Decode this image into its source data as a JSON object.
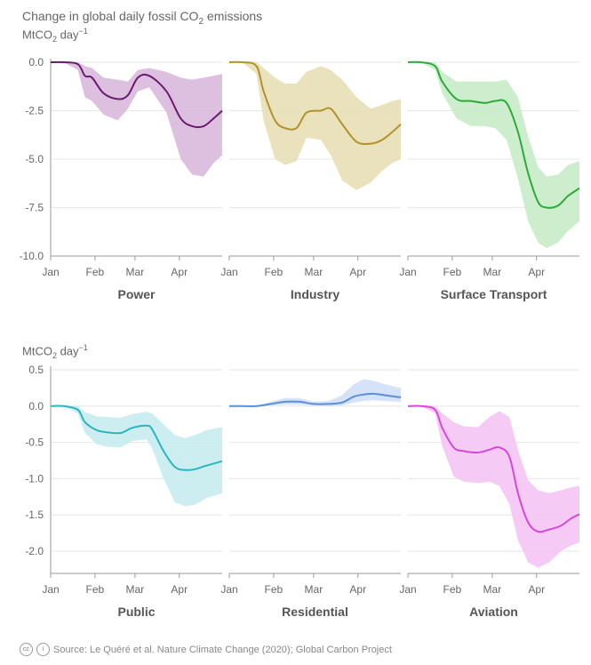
{
  "header": {
    "title_pre": "Change in global daily fossil CO",
    "title_sub": "2",
    "title_post": " emissions"
  },
  "unit": {
    "pre": "MtCO",
    "sub": "2",
    "mid": " day",
    "sup": "−1"
  },
  "source": "Source: Le Quéré et al. Nature Climate Change (2020); Global Carbon Project",
  "cc_icon": "creative-commons-icon",
  "cc_label": "cc",
  "by_icon": "attribution-icon",
  "by_label": "i",
  "chart_data": [
    {
      "type": "area",
      "y_ticks": [
        "0.0",
        "-2.5",
        "-5.0",
        "-7.5",
        "-10.0"
      ],
      "ylim": [
        -10,
        0
      ],
      "x_ticks": [
        "Jan",
        "Feb",
        "Mar",
        "Apr"
      ],
      "grid": "horizontal",
      "panels": [
        {
          "title": "Power",
          "color": "#6a1b6e",
          "fill": "#d9b8dc",
          "x": [
            1,
            10,
            20,
            25,
            30,
            38,
            48,
            55,
            62,
            70,
            82,
            92,
            100,
            108,
            115,
            121
          ],
          "y": [
            0,
            0,
            -0.1,
            -0.7,
            -0.8,
            -1.6,
            -1.9,
            -1.7,
            -0.8,
            -0.7,
            -1.5,
            -2.9,
            -3.3,
            -3.3,
            -2.9,
            -2.5
          ],
          "y_lower": [
            0,
            0,
            -0.4,
            -1.8,
            -2.0,
            -2.7,
            -3.0,
            -2.4,
            -1.5,
            -1.3,
            -2.6,
            -5.0,
            -5.8,
            -5.9,
            -5.2,
            -4.8
          ],
          "y_upper": [
            0,
            0,
            0,
            -0.2,
            -0.3,
            -0.8,
            -0.9,
            -1.0,
            -0.4,
            -0.3,
            -0.5,
            -0.8,
            -0.9,
            -0.8,
            -0.7,
            -0.6
          ]
        },
        {
          "title": "Industry",
          "color": "#b0912a",
          "fill": "#e8dfb5",
          "x": [
            1,
            10,
            20,
            25,
            33,
            40,
            48,
            55,
            65,
            72,
            80,
            90,
            100,
            108,
            115,
            121
          ],
          "y": [
            0,
            0,
            -0.2,
            -1.5,
            -3.0,
            -3.4,
            -3.4,
            -2.6,
            -2.5,
            -2.4,
            -3.2,
            -4.1,
            -4.2,
            -4.0,
            -3.6,
            -3.2
          ],
          "y_lower": [
            0,
            0,
            -0.6,
            -3.0,
            -5.0,
            -5.3,
            -5.1,
            -3.9,
            -4.0,
            -4.8,
            -6.1,
            -6.6,
            -6.2,
            -5.6,
            -5.2,
            -5.0
          ],
          "y_upper": [
            0,
            0,
            0,
            -0.3,
            -0.8,
            -1.1,
            -1.1,
            -0.5,
            -0.2,
            -0.4,
            -0.9,
            -1.8,
            -2.4,
            -2.2,
            -2.0,
            -1.9
          ]
        },
        {
          "title": "Surface Transport",
          "color": "#2eaa3c",
          "fill": "#c6ecc6",
          "x": [
            1,
            10,
            20,
            25,
            35,
            45,
            55,
            62,
            70,
            78,
            85,
            92,
            98,
            106,
            113,
            121
          ],
          "y": [
            0,
            0,
            -0.2,
            -1.0,
            -1.9,
            -2.0,
            -2.1,
            -2.0,
            -2.1,
            -3.6,
            -5.7,
            -7.2,
            -7.5,
            -7.4,
            -6.9,
            -6.5
          ],
          "y_lower": [
            0,
            0,
            -0.4,
            -1.6,
            -2.9,
            -3.3,
            -3.3,
            -3.4,
            -4.0,
            -6.0,
            -8.2,
            -9.3,
            -9.6,
            -9.3,
            -8.7,
            -8.2
          ],
          "y_upper": [
            0,
            0,
            0,
            -0.5,
            -1.0,
            -1.0,
            -1.0,
            -1.0,
            -0.9,
            -1.8,
            -3.8,
            -5.4,
            -5.9,
            -5.8,
            -5.3,
            -5.1
          ]
        }
      ]
    },
    {
      "type": "area",
      "y_ticks": [
        "0.5",
        "0.0",
        "-0.5",
        "-1.0",
        "-1.5",
        "-2.0"
      ],
      "ylim": [
        -2.4,
        0.6
      ],
      "x_ticks": [
        "Jan",
        "Feb",
        "Mar",
        "Apr"
      ],
      "grid": "horizontal",
      "panels": [
        {
          "title": "Public",
          "color": "#2bb5bf",
          "fill": "#c7ecef",
          "x": [
            1,
            10,
            20,
            25,
            33,
            40,
            50,
            58,
            68,
            72,
            80,
            88,
            95,
            102,
            110,
            121
          ],
          "y": [
            0,
            0,
            -0.05,
            -0.22,
            -0.33,
            -0.36,
            -0.37,
            -0.3,
            -0.27,
            -0.32,
            -0.62,
            -0.84,
            -0.88,
            -0.87,
            -0.82,
            -0.76
          ],
          "y_lower": [
            0,
            0,
            -0.1,
            -0.37,
            -0.52,
            -0.56,
            -0.57,
            -0.48,
            -0.46,
            -0.58,
            -1.0,
            -1.33,
            -1.38,
            -1.36,
            -1.27,
            -1.2
          ],
          "y_upper": [
            0,
            0,
            0,
            -0.08,
            -0.14,
            -0.15,
            -0.16,
            -0.11,
            -0.08,
            -0.1,
            -0.25,
            -0.4,
            -0.44,
            -0.4,
            -0.33,
            -0.29
          ]
        },
        {
          "title": "Residential",
          "color": "#5b8fd6",
          "fill": "#cfe0fa",
          "x": [
            1,
            10,
            20,
            30,
            40,
            50,
            60,
            70,
            80,
            88,
            95,
            102,
            110,
            121
          ],
          "y": [
            0,
            0,
            0,
            0.03,
            0.06,
            0.06,
            0.03,
            0.03,
            0.05,
            0.13,
            0.16,
            0.17,
            0.15,
            0.12
          ],
          "y_lower": [
            0,
            0,
            0,
            0.01,
            0.02,
            0.02,
            0.01,
            0.0,
            0.01,
            0.05,
            0.07,
            0.08,
            0.07,
            0.06
          ],
          "y_upper": [
            0,
            0,
            0,
            0.06,
            0.11,
            0.11,
            0.06,
            0.07,
            0.15,
            0.3,
            0.37,
            0.35,
            0.3,
            0.25
          ]
        },
        {
          "title": "Aviation",
          "color": "#d549d8",
          "fill": "#f4c4f4",
          "x": [
            1,
            10,
            20,
            25,
            33,
            40,
            50,
            58,
            65,
            72,
            78,
            85,
            92,
            100,
            108,
            115,
            121
          ],
          "y": [
            0,
            0,
            -0.05,
            -0.3,
            -0.57,
            -0.62,
            -0.64,
            -0.6,
            -0.57,
            -0.7,
            -1.2,
            -1.6,
            -1.73,
            -1.7,
            -1.65,
            -1.55,
            -1.49
          ],
          "y_lower": [
            0,
            0,
            -0.1,
            -0.55,
            -0.97,
            -1.04,
            -1.06,
            -1.04,
            -1.1,
            -1.35,
            -1.85,
            -2.15,
            -2.23,
            -2.15,
            -2.0,
            -1.92,
            -1.88
          ],
          "y_upper": [
            0,
            0,
            0,
            -0.1,
            -0.22,
            -0.28,
            -0.29,
            -0.15,
            -0.07,
            -0.15,
            -0.6,
            -1.02,
            -1.16,
            -1.2,
            -1.16,
            -1.12,
            -1.1
          ]
        }
      ]
    }
  ]
}
